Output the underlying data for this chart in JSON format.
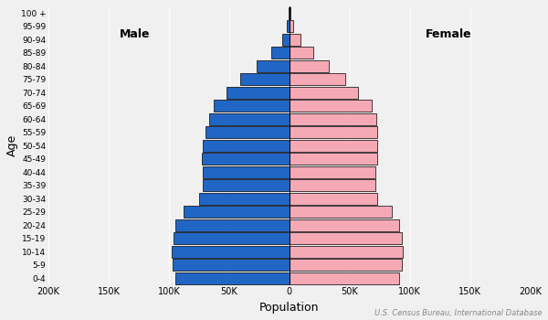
{
  "age_groups": [
    "0-4",
    "5-9",
    "10-14",
    "15-19",
    "20-24",
    "25-29",
    "30-34",
    "35-39",
    "40-44",
    "45-49",
    "50-54",
    "55-59",
    "60-64",
    "65-69",
    "70-74",
    "75-79",
    "80-84",
    "85-89",
    "90-94",
    "95-99",
    "100 +"
  ],
  "male": [
    95000,
    97000,
    98000,
    96000,
    95000,
    88000,
    75000,
    72000,
    72000,
    73000,
    72000,
    70000,
    67000,
    63000,
    52000,
    41000,
    27000,
    15000,
    6000,
    2000,
    500
  ],
  "female": [
    91000,
    93000,
    94000,
    93000,
    91000,
    85000,
    73000,
    71000,
    71000,
    73000,
    73000,
    73000,
    72000,
    68000,
    57000,
    46000,
    33000,
    20000,
    9000,
    3000,
    800
  ],
  "male_100plus_err": 2000,
  "female_100plus_err": 1500,
  "male_color": "#2166c4",
  "female_color": "#f4a9b4",
  "edge_color": "#000000",
  "xlabel": "Population",
  "ylabel": "Age",
  "male_label": "Male",
  "female_label": "Female",
  "source_text": "U.S. Census Bureau, International Database",
  "xlim": 200000,
  "xtick_values": [
    -200000,
    -150000,
    -100000,
    -50000,
    0,
    50000,
    100000,
    150000,
    200000
  ],
  "xtick_labels": [
    "200K",
    "150K",
    "100K",
    "50K",
    "0",
    "50K",
    "100K",
    "150K",
    "200K"
  ],
  "background_color": "#f0f0f0",
  "bar_linewidth": 0.5,
  "bar_height": 0.9
}
